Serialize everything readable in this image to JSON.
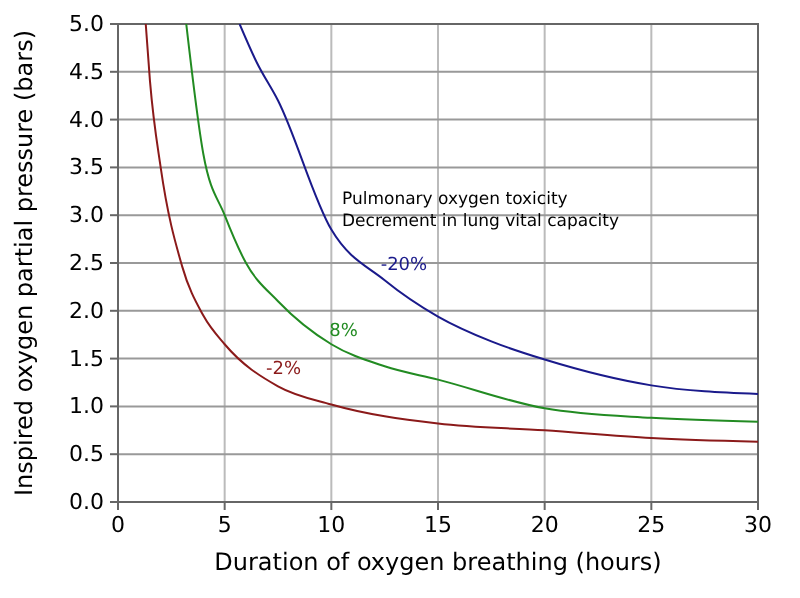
{
  "chart_data": {
    "type": "line",
    "xlabel": "Duration of oxygen breathing (hours)",
    "ylabel": "Inspired oxygen partial pressure (bars)",
    "annotations": [
      "Pulmonary oxygen toxicity\nDecrement in lung vital capacity"
    ],
    "series": [
      {
        "name": "-2%",
        "color": "#8b1a1a",
        "x": [
          1.3,
          1.5,
          2,
          3,
          4,
          5,
          7.5,
          10,
          15,
          20,
          25,
          30
        ],
        "values": [
          5.0,
          4.4,
          3.5,
          2.47,
          1.95,
          1.65,
          1.21,
          1.02,
          0.82,
          0.75,
          0.67,
          0.63
        ]
      },
      {
        "name": "8%",
        "color": "#228b22",
        "x": [
          3.2,
          4,
          5,
          6,
          7.5,
          10,
          12.5,
          15,
          20,
          25,
          30
        ],
        "values": [
          5.0,
          3.64,
          3.0,
          2.5,
          2.1,
          1.65,
          1.42,
          1.28,
          0.98,
          0.88,
          0.84
        ]
      },
      {
        "name": "-20%",
        "color": "#1a1a8b",
        "x": [
          5.7,
          6.5,
          7.5,
          10,
          12.5,
          15,
          17.5,
          20,
          25,
          30
        ],
        "values": [
          5.0,
          4.6,
          4.2,
          2.85,
          2.32,
          1.94,
          1.68,
          1.49,
          1.22,
          1.13
        ]
      }
    ],
    "xlim": [
      0,
      30
    ],
    "xticks": [
      0,
      5,
      10,
      15,
      20,
      25,
      30
    ],
    "ylim": [
      0,
      5
    ],
    "yticks": [
      {
        "value": 0,
        "label": "0.0"
      },
      {
        "value": 0.5,
        "label": "0.5"
      },
      {
        "value": 1,
        "label": "1.0"
      },
      {
        "value": 1.5,
        "label": "1.5"
      },
      {
        "value": 2,
        "label": "2.0"
      },
      {
        "value": 2.5,
        "label": "2.5"
      },
      {
        "value": 3,
        "label": "3.0"
      },
      {
        "value": 3.5,
        "label": "3.5"
      },
      {
        "value": 4,
        "label": "4.0"
      },
      {
        "value": 4.5,
        "label": "4.5"
      },
      {
        "value": 5,
        "label": "5.0"
      }
    ],
    "grid": true,
    "marker": "none",
    "line_style": "solid",
    "legend": false
  }
}
